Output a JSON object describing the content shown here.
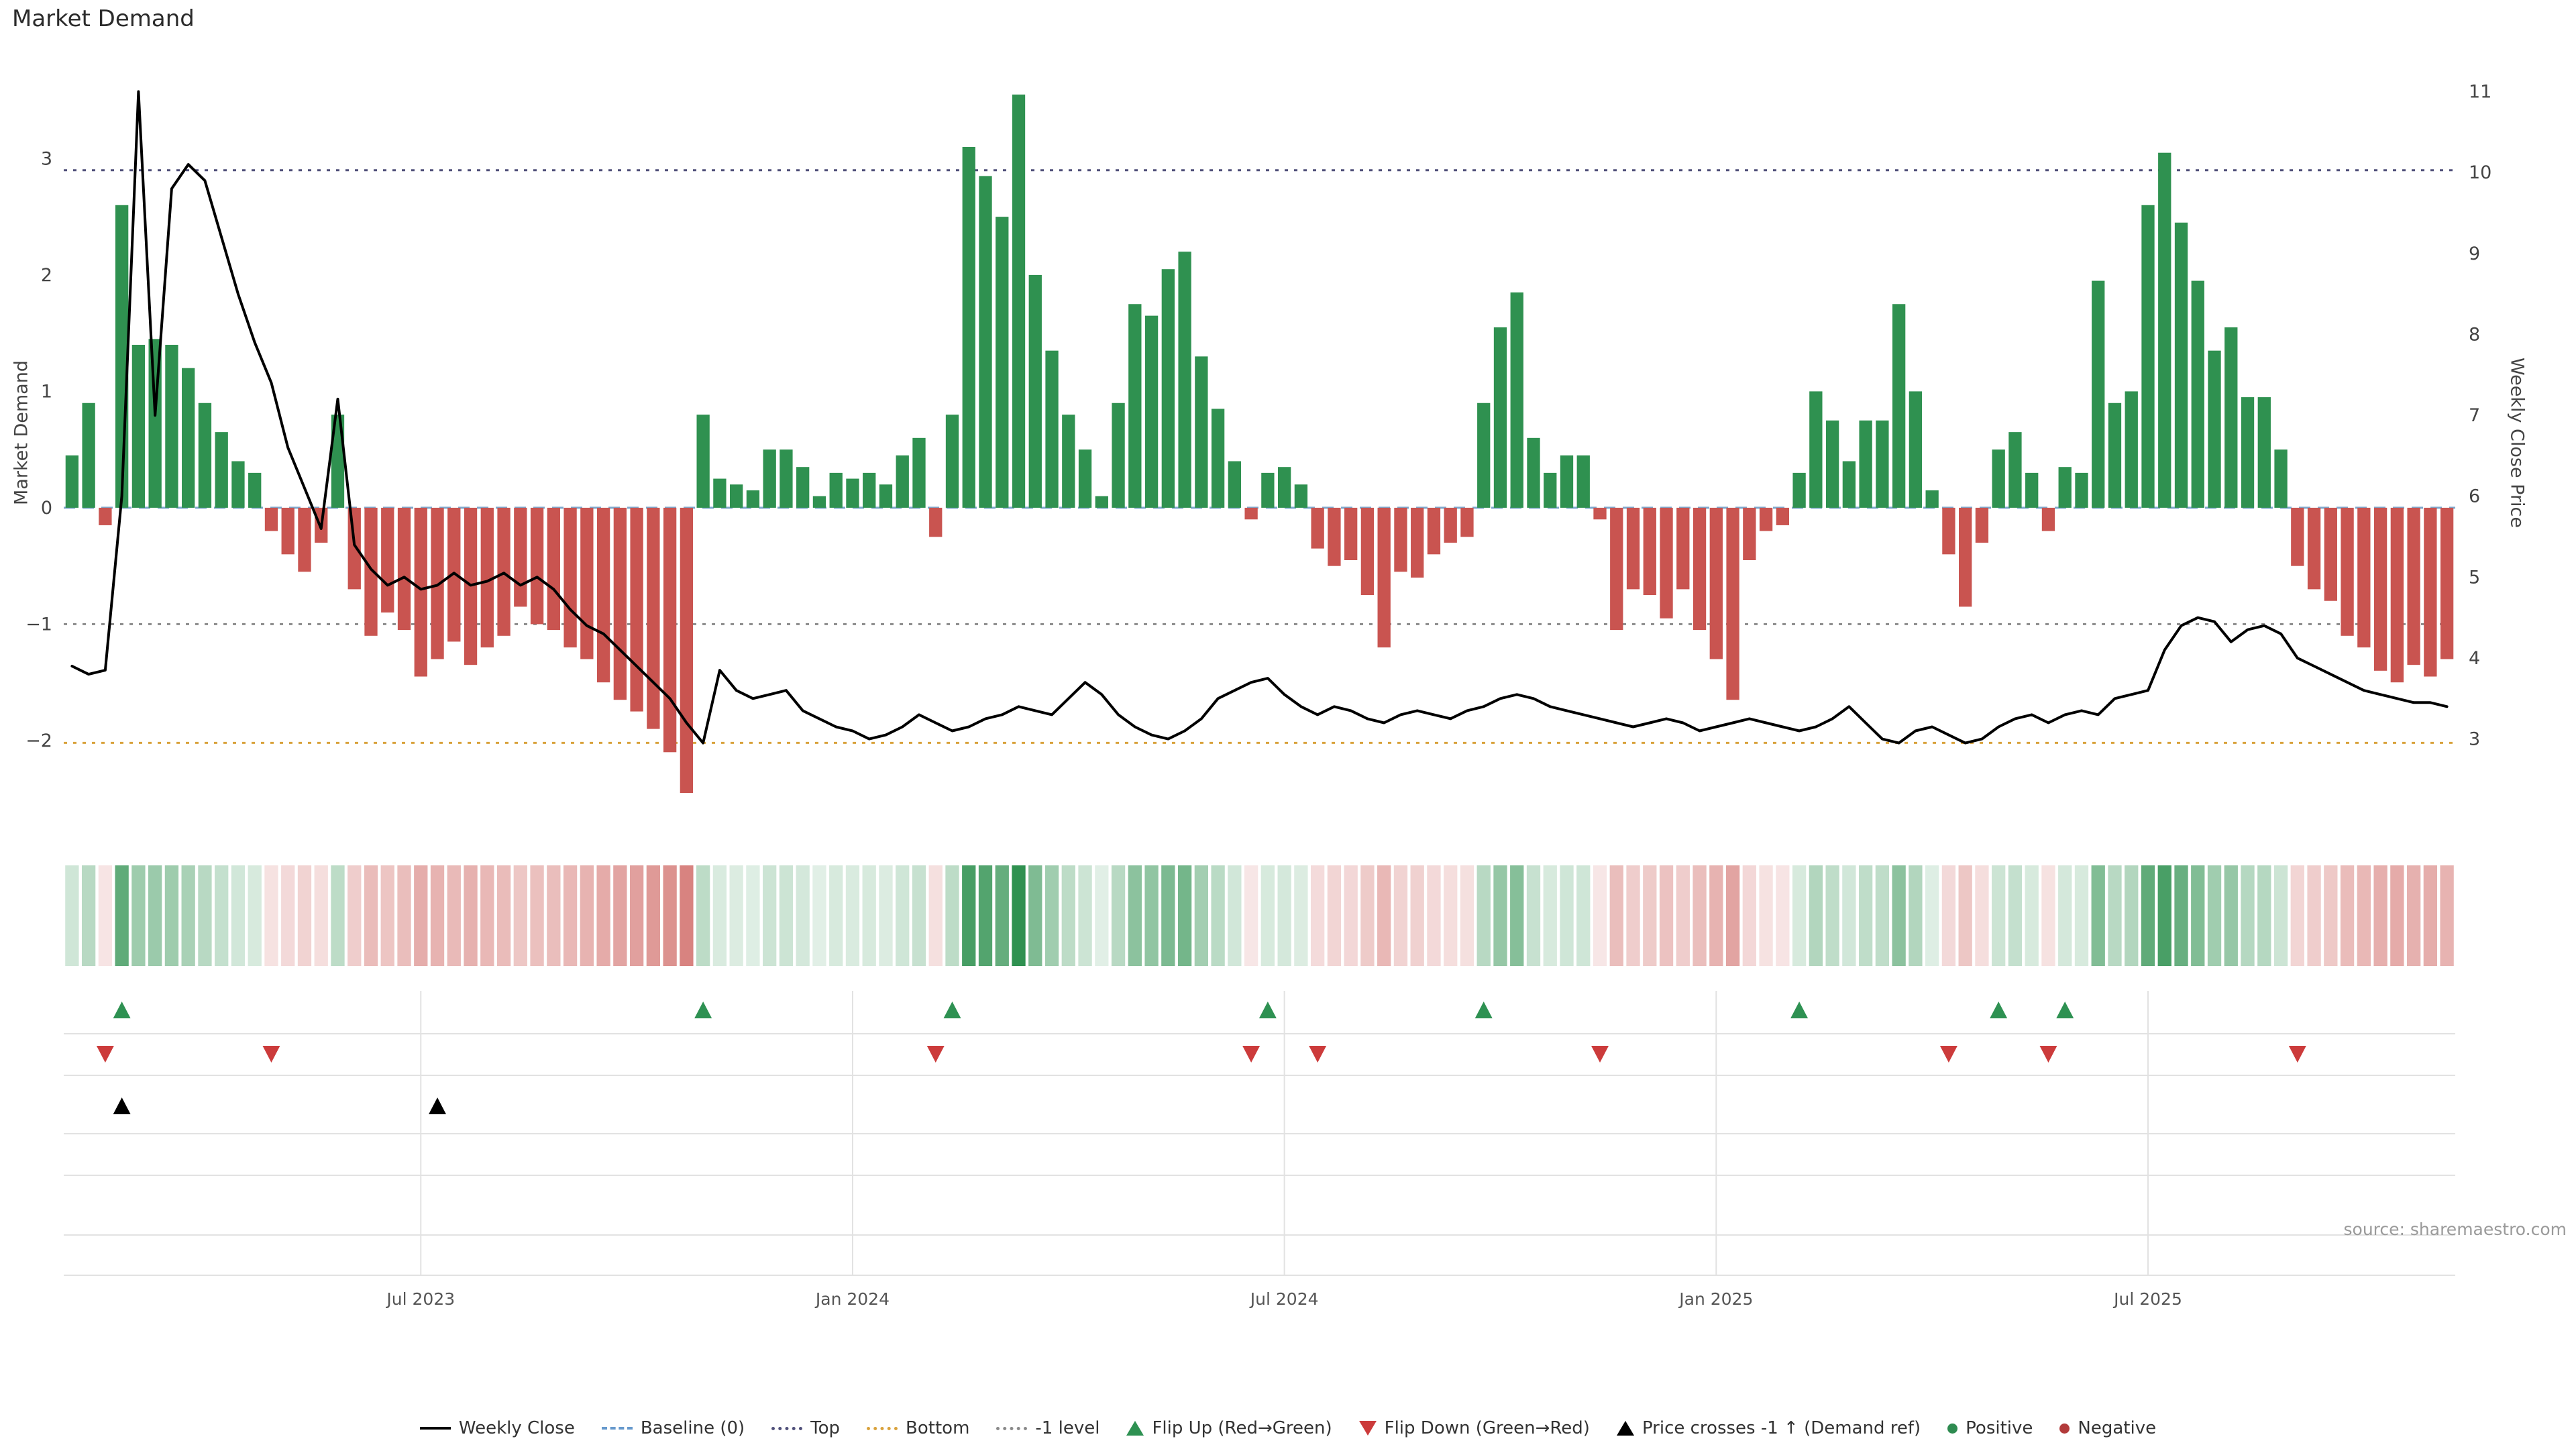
{
  "title": "Market Demand",
  "source": "source: sharemaestro.com",
  "colors": {
    "positive": "#2f9150",
    "negative": "#c95450",
    "line": "#000000",
    "baseline": "#7da7cc",
    "top_line": "#50507a",
    "minus1_line": "#8a8a8a",
    "bottom_line": "#d9a23c",
    "flip_up": "#2e9152",
    "flip_down": "#cc3b3b",
    "price_cross": "#000000",
    "grid": "#e2e2e2",
    "tick_text": "#444444",
    "x_tick_text": "#555555"
  },
  "chart_data": {
    "type": "combo",
    "title": "Market Demand",
    "x_count": 144,
    "x_ticks": [
      {
        "i": 21,
        "label": "Jul 2023"
      },
      {
        "i": 47,
        "label": "Jan 2024"
      },
      {
        "i": 73,
        "label": "Jul 2024"
      },
      {
        "i": 99,
        "label": "Jan 2025"
      },
      {
        "i": 125,
        "label": "Jul 2025"
      }
    ],
    "left_axis": {
      "label": "Market Demand",
      "range": [
        -2.64,
        3.93
      ],
      "ticks": [
        {
          "v": 3,
          "label": "3"
        },
        {
          "v": 2,
          "label": "2"
        },
        {
          "v": 1,
          "label": "1"
        },
        {
          "v": 0,
          "label": "0"
        },
        {
          "v": -1,
          "label": "−1"
        },
        {
          "v": -2,
          "label": "−2"
        }
      ]
    },
    "right_axis": {
      "label": "Weekly Close Price",
      "range": [
        2.06,
        11.51
      ],
      "ticks": [
        {
          "v": 11,
          "label": "11"
        },
        {
          "v": 10,
          "label": "10"
        },
        {
          "v": 9,
          "label": "9"
        },
        {
          "v": 8,
          "label": "8"
        },
        {
          "v": 7,
          "label": "7"
        },
        {
          "v": 6,
          "label": "6"
        },
        {
          "v": 5,
          "label": "5"
        },
        {
          "v": 4,
          "label": "4"
        },
        {
          "v": 3,
          "label": "3"
        }
      ]
    },
    "ref_lines": {
      "baseline": 0,
      "top": 2.9,
      "minus1": -1.0,
      "bottom": -2.02
    },
    "series": [
      {
        "name": "Market Demand",
        "type": "bar",
        "axis": "left",
        "values": [
          0.45,
          0.9,
          -0.15,
          2.6,
          1.4,
          1.45,
          1.4,
          1.2,
          0.9,
          0.65,
          0.4,
          0.3,
          -0.2,
          -0.4,
          -0.55,
          -0.3,
          0.8,
          -0.7,
          -1.1,
          -0.9,
          -1.05,
          -1.45,
          -1.3,
          -1.15,
          -1.35,
          -1.2,
          -1.1,
          -0.85,
          -1.0,
          -1.05,
          -1.2,
          -1.3,
          -1.5,
          -1.65,
          -1.75,
          -1.9,
          -2.1,
          -2.45,
          0.8,
          0.25,
          0.2,
          0.15,
          0.5,
          0.5,
          0.35,
          0.1,
          0.3,
          0.25,
          0.3,
          0.2,
          0.45,
          0.6,
          -0.25,
          0.8,
          3.1,
          2.85,
          2.5,
          3.55,
          2.0,
          1.35,
          0.8,
          0.5,
          0.1,
          0.9,
          1.75,
          1.65,
          2.05,
          2.2,
          1.3,
          0.85,
          0.4,
          -0.1,
          0.3,
          0.35,
          0.2,
          -0.35,
          -0.5,
          -0.45,
          -0.75,
          -1.2,
          -0.55,
          -0.6,
          -0.4,
          -0.3,
          -0.25,
          0.9,
          1.55,
          1.85,
          0.6,
          0.3,
          0.45,
          0.45,
          -0.1,
          -1.05,
          -0.7,
          -0.75,
          -0.95,
          -0.7,
          -1.05,
          -1.3,
          -1.65,
          -0.45,
          -0.2,
          -0.15,
          0.3,
          1.0,
          0.75,
          0.4,
          0.75,
          0.75,
          1.75,
          1.0,
          0.15,
          -0.4,
          -0.85,
          -0.3,
          0.5,
          0.65,
          0.3,
          -0.2,
          0.35,
          0.3,
          1.95,
          0.9,
          1.0,
          2.6,
          3.05,
          2.45,
          1.95,
          1.35,
          1.55,
          0.95,
          0.95,
          0.5,
          -0.5,
          -0.7,
          -0.8,
          -1.1,
          -1.2,
          -1.4,
          -1.5,
          -1.35,
          -1.45,
          -1.3
        ]
      },
      {
        "name": "Weekly Close",
        "type": "line",
        "axis": "right",
        "values": [
          3.9,
          3.8,
          3.85,
          6.0,
          11.0,
          7.0,
          9.8,
          10.1,
          9.9,
          9.2,
          8.5,
          7.9,
          7.4,
          6.6,
          6.1,
          5.6,
          7.2,
          5.4,
          5.1,
          4.9,
          5.0,
          4.85,
          4.9,
          5.05,
          4.9,
          4.95,
          5.05,
          4.9,
          5.0,
          4.85,
          4.6,
          4.4,
          4.3,
          4.1,
          3.9,
          3.7,
          3.5,
          3.2,
          2.95,
          3.85,
          3.6,
          3.5,
          3.55,
          3.6,
          3.35,
          3.25,
          3.15,
          3.1,
          3.0,
          3.05,
          3.15,
          3.3,
          3.2,
          3.1,
          3.15,
          3.25,
          3.3,
          3.4,
          3.35,
          3.3,
          3.5,
          3.7,
          3.55,
          3.3,
          3.15,
          3.05,
          3.0,
          3.1,
          3.25,
          3.5,
          3.6,
          3.7,
          3.75,
          3.55,
          3.4,
          3.3,
          3.4,
          3.35,
          3.25,
          3.2,
          3.3,
          3.35,
          3.3,
          3.25,
          3.35,
          3.4,
          3.5,
          3.55,
          3.5,
          3.4,
          3.35,
          3.3,
          3.25,
          3.2,
          3.15,
          3.2,
          3.25,
          3.2,
          3.1,
          3.15,
          3.2,
          3.25,
          3.2,
          3.15,
          3.1,
          3.15,
          3.25,
          3.4,
          3.2,
          3.0,
          2.95,
          3.1,
          3.15,
          3.05,
          2.95,
          3.0,
          3.15,
          3.25,
          3.3,
          3.2,
          3.3,
          3.35,
          3.3,
          3.5,
          3.55,
          3.6,
          4.1,
          4.4,
          4.5,
          4.45,
          4.2,
          4.35,
          4.4,
          4.3,
          4.0,
          3.9,
          3.8,
          3.7,
          3.6,
          3.55,
          3.5,
          3.45,
          3.45,
          3.4
        ]
      }
    ],
    "markers": {
      "flip_up": [
        3,
        38,
        53,
        72,
        85,
        104,
        116,
        120
      ],
      "flip_down": [
        2,
        12,
        52,
        71,
        75,
        92,
        113,
        119,
        134
      ],
      "price_cross_minus1": [
        3,
        22
      ]
    },
    "heatmap": {
      "note": "strip mirrors Market Demand bar sign, shade intensity = |value|",
      "max_abs": 3.55
    }
  },
  "legend": {
    "items": [
      {
        "label": "Weekly Close",
        "swatch": "line",
        "color": "#000000"
      },
      {
        "label": "Baseline (0)",
        "swatch": "dashed",
        "color": "#6699cc"
      },
      {
        "label": "Top",
        "swatch": "dotted",
        "color": "#50507a"
      },
      {
        "label": "Bottom",
        "swatch": "dotted",
        "color": "#d9a23c"
      },
      {
        "label": "-1 level",
        "swatch": "dotted",
        "color": "#8a8a8a"
      },
      {
        "label": "Flip Up (Red→Green)",
        "swatch": "triangle-up",
        "color": "#2e9152"
      },
      {
        "label": "Flip Down (Green→Red)",
        "swatch": "triangle-down",
        "color": "#cc3b3b"
      },
      {
        "label": "Price crosses -1 ↑ (Demand ref)",
        "swatch": "triangle-up",
        "color": "#000000"
      },
      {
        "label": "Positive",
        "swatch": "dot",
        "color": "#2e8b50"
      },
      {
        "label": "Negative",
        "swatch": "dot",
        "color": "#b23a3a"
      }
    ]
  }
}
